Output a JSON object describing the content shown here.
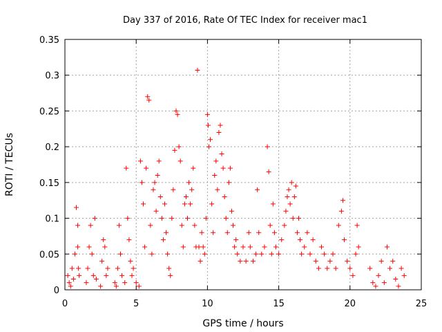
{
  "chart_data": {
    "type": "scatter",
    "title": "Day 337 of 2016, Rate Of TEC Index for receiver mac1",
    "xlabel": "GPS time / hours",
    "ylabel": "ROTI / TECUs",
    "xlim": [
      0,
      25
    ],
    "ylim": [
      0,
      0.35
    ],
    "xticks": [
      "0",
      "5",
      "10",
      "15",
      "20",
      "25"
    ],
    "yticks": [
      "0",
      "0.05",
      "0.1",
      "0.15",
      "0.2",
      "0.25",
      "0.3",
      "0.35"
    ],
    "grid": true,
    "marker": "+",
    "color": "#ff0000",
    "points": [
      [
        0.2,
        0.02
      ],
      [
        0.3,
        0.01
      ],
      [
        0.4,
        0.005
      ],
      [
        0.5,
        0.03
      ],
      [
        0.6,
        0.015
      ],
      [
        0.7,
        0.05
      ],
      [
        0.8,
        0.115
      ],
      [
        0.9,
        0.06
      ],
      [
        0.9,
        0.09
      ],
      [
        0.95,
        0.03
      ],
      [
        1.0,
        0.02
      ],
      [
        1.5,
        0.01
      ],
      [
        1.6,
        0.03
      ],
      [
        1.7,
        0.06
      ],
      [
        1.8,
        0.09
      ],
      [
        1.9,
        0.05
      ],
      [
        2.0,
        0.02
      ],
      [
        2.1,
        0.1
      ],
      [
        2.2,
        0.015
      ],
      [
        2.5,
        0.005
      ],
      [
        2.6,
        0.04
      ],
      [
        2.7,
        0.07
      ],
      [
        2.8,
        0.06
      ],
      [
        2.9,
        0.02
      ],
      [
        3.0,
        0.03
      ],
      [
        3.5,
        0.01
      ],
      [
        3.6,
        0.005
      ],
      [
        3.7,
        0.03
      ],
      [
        3.8,
        0.09
      ],
      [
        3.9,
        0.05
      ],
      [
        4.0,
        0.02
      ],
      [
        4.2,
        0.01
      ],
      [
        4.3,
        0.17
      ],
      [
        4.4,
        0.1
      ],
      [
        4.5,
        0.07
      ],
      [
        4.6,
        0.04
      ],
      [
        4.7,
        0.02
      ],
      [
        4.8,
        0.03
      ],
      [
        5.0,
        0.01
      ],
      [
        5.2,
        0.005
      ],
      [
        5.3,
        0.18
      ],
      [
        5.4,
        0.15
      ],
      [
        5.5,
        0.12
      ],
      [
        5.6,
        0.06
      ],
      [
        5.7,
        0.17
      ],
      [
        5.8,
        0.27
      ],
      [
        5.9,
        0.265
      ],
      [
        6.0,
        0.09
      ],
      [
        6.1,
        0.05
      ],
      [
        6.2,
        0.14
      ],
      [
        6.3,
        0.15
      ],
      [
        6.4,
        0.11
      ],
      [
        6.5,
        0.16
      ],
      [
        6.6,
        0.18
      ],
      [
        6.7,
        0.13
      ],
      [
        6.8,
        0.1
      ],
      [
        6.9,
        0.07
      ],
      [
        7.0,
        0.12
      ],
      [
        7.1,
        0.08
      ],
      [
        7.2,
        0.05
      ],
      [
        7.3,
        0.03
      ],
      [
        7.4,
        0.02
      ],
      [
        7.5,
        0.1
      ],
      [
        7.6,
        0.14
      ],
      [
        7.7,
        0.195
      ],
      [
        7.8,
        0.25
      ],
      [
        7.9,
        0.245
      ],
      [
        8.0,
        0.2
      ],
      [
        8.1,
        0.18
      ],
      [
        8.2,
        0.09
      ],
      [
        8.3,
        0.06
      ],
      [
        8.4,
        0.12
      ],
      [
        8.5,
        0.13
      ],
      [
        8.6,
        0.1
      ],
      [
        8.7,
        0.15
      ],
      [
        8.8,
        0.12
      ],
      [
        8.9,
        0.14
      ],
      [
        9.0,
        0.17
      ],
      [
        9.1,
        0.09
      ],
      [
        9.2,
        0.06
      ],
      [
        9.3,
        0.307
      ],
      [
        9.4,
        0.06
      ],
      [
        9.5,
        0.04
      ],
      [
        9.6,
        0.08
      ],
      [
        9.7,
        0.06
      ],
      [
        9.8,
        0.05
      ],
      [
        9.9,
        0.1
      ],
      [
        10.0,
        0.245
      ],
      [
        10.05,
        0.23
      ],
      [
        10.1,
        0.2
      ],
      [
        10.2,
        0.21
      ],
      [
        10.3,
        0.12
      ],
      [
        10.4,
        0.08
      ],
      [
        10.5,
        0.16
      ],
      [
        10.6,
        0.18
      ],
      [
        10.7,
        0.14
      ],
      [
        10.8,
        0.22
      ],
      [
        10.9,
        0.23
      ],
      [
        11.0,
        0.19
      ],
      [
        11.1,
        0.17
      ],
      [
        11.2,
        0.13
      ],
      [
        11.3,
        0.1
      ],
      [
        11.4,
        0.08
      ],
      [
        11.5,
        0.15
      ],
      [
        11.6,
        0.17
      ],
      [
        11.7,
        0.11
      ],
      [
        11.8,
        0.09
      ],
      [
        11.9,
        0.06
      ],
      [
        12.0,
        0.07
      ],
      [
        12.1,
        0.05
      ],
      [
        12.3,
        0.04
      ],
      [
        12.5,
        0.06
      ],
      [
        12.7,
        0.04
      ],
      [
        12.9,
        0.08
      ],
      [
        13.0,
        0.06
      ],
      [
        13.2,
        0.04
      ],
      [
        13.4,
        0.05
      ],
      [
        13.5,
        0.14
      ],
      [
        13.6,
        0.08
      ],
      [
        13.8,
        0.05
      ],
      [
        14.0,
        0.06
      ],
      [
        14.2,
        0.2
      ],
      [
        14.3,
        0.165
      ],
      [
        14.4,
        0.09
      ],
      [
        14.5,
        0.05
      ],
      [
        14.6,
        0.12
      ],
      [
        14.7,
        0.08
      ],
      [
        14.8,
        0.06
      ],
      [
        15.0,
        0.05
      ],
      [
        15.2,
        0.07
      ],
      [
        15.4,
        0.09
      ],
      [
        15.5,
        0.11
      ],
      [
        15.6,
        0.13
      ],
      [
        15.7,
        0.14
      ],
      [
        15.8,
        0.12
      ],
      [
        15.9,
        0.15
      ],
      [
        16.0,
        0.1
      ],
      [
        16.1,
        0.13
      ],
      [
        16.2,
        0.145
      ],
      [
        16.3,
        0.08
      ],
      [
        16.4,
        0.1
      ],
      [
        16.5,
        0.07
      ],
      [
        16.6,
        0.05
      ],
      [
        16.8,
        0.06
      ],
      [
        17.0,
        0.08
      ],
      [
        17.2,
        0.05
      ],
      [
        17.4,
        0.07
      ],
      [
        17.6,
        0.04
      ],
      [
        17.8,
        0.03
      ],
      [
        18.0,
        0.06
      ],
      [
        18.2,
        0.05
      ],
      [
        18.4,
        0.03
      ],
      [
        18.6,
        0.04
      ],
      [
        18.8,
        0.05
      ],
      [
        19.0,
        0.03
      ],
      [
        19.2,
        0.09
      ],
      [
        19.4,
        0.11
      ],
      [
        19.5,
        0.125
      ],
      [
        19.6,
        0.07
      ],
      [
        19.8,
        0.04
      ],
      [
        20.0,
        0.03
      ],
      [
        20.2,
        0.02
      ],
      [
        20.4,
        0.05
      ],
      [
        20.5,
        0.09
      ],
      [
        20.6,
        0.06
      ],
      [
        21.4,
        0.03
      ],
      [
        21.6,
        0.01
      ],
      [
        21.8,
        0.005
      ],
      [
        22.0,
        0.02
      ],
      [
        22.2,
        0.04
      ],
      [
        22.4,
        0.01
      ],
      [
        22.6,
        0.06
      ],
      [
        22.8,
        0.03
      ],
      [
        23.0,
        0.04
      ],
      [
        23.2,
        0.015
      ],
      [
        23.4,
        0.005
      ],
      [
        23.6,
        0.03
      ],
      [
        23.8,
        0.02
      ]
    ]
  }
}
